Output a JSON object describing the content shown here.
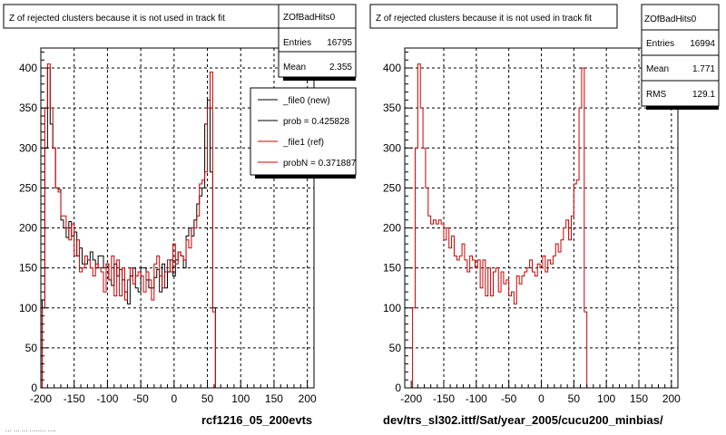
{
  "footer_text": "... ... ... ........ ....",
  "colors": {
    "new": "#000000",
    "ref": "#cc0000"
  },
  "legend": {
    "entries": [
      {
        "label": "_file0 (new)",
        "color": "#000000"
      },
      {
        "label": "prob = 0.425828",
        "color": "#000000"
      },
      {
        "label": "_file1 (ref)",
        "color": "#cc0000"
      },
      {
        "label": "probN = 0.371887",
        "color": "#cc0000"
      }
    ]
  },
  "chart_data": [
    {
      "type": "histogram",
      "title": "Z of rejected clusters  because it is not used in track fit",
      "xlabel": "rcf1216_05_200evts",
      "ylabel": "",
      "xlim": [
        -200,
        210
      ],
      "ylim": [
        0,
        425
      ],
      "xticks": [
        -200,
        -150,
        -100,
        -50,
        0,
        50,
        100,
        150,
        200
      ],
      "yticks": [
        0,
        50,
        100,
        150,
        200,
        250,
        300,
        350,
        400
      ],
      "grid": true,
      "legend": "top-right",
      "bin_edges": {
        "start": -210,
        "width": 4
      },
      "stats": {
        "name": "ZOfBadHits0",
        "rows": [
          {
            "label": "Entries",
            "value": "16795"
          },
          {
            "label": "Mean",
            "value": "2.355"
          }
        ]
      },
      "series": [
        {
          "name": "_file0 (new)",
          "color": "#000000",
          "values": [
            0,
            0,
            0,
            110,
            300,
            400,
            330,
            300,
            250,
            248,
            210,
            200,
            188,
            208,
            190,
            195,
            165,
            175,
            155,
            155,
            160,
            170,
            160,
            150,
            165,
            165,
            150,
            155,
            135,
            128,
            155,
            140,
            148,
            135,
            120,
            105,
            140,
            150,
            125,
            120,
            150,
            150,
            135,
            125,
            125,
            138,
            148,
            120,
            155,
            125,
            145,
            160,
            140,
            160,
            170,
            165,
            150,
            190,
            200,
            190,
            210,
            230,
            240,
            250,
            330,
            360,
            270,
            100,
            0,
            0,
            0,
            0
          ]
        },
        {
          "name": "_file1 (ref)",
          "color": "#cc0000",
          "values": [
            0,
            0,
            0,
            100,
            350,
            405,
            350,
            300,
            250,
            245,
            215,
            215,
            200,
            185,
            205,
            165,
            185,
            145,
            150,
            165,
            160,
            150,
            140,
            155,
            150,
            145,
            120,
            155,
            135,
            165,
            115,
            160,
            115,
            150,
            110,
            135,
            150,
            130,
            140,
            145,
            140,
            120,
            145,
            135,
            110,
            155,
            165,
            140,
            125,
            145,
            160,
            145,
            180,
            155,
            170,
            165,
            160,
            185,
            175,
            200,
            200,
            215,
            255,
            260,
            270,
            350,
            395,
            95,
            0,
            0,
            0,
            0
          ]
        }
      ]
    },
    {
      "type": "histogram",
      "title": "Z of rejected clusters  because it is not used in track fit",
      "xlabel": "dev/trs_sl302.ittf/Sat/year_2005/cucu200_minbias/",
      "ylabel": "",
      "xlim": [
        -210,
        210
      ],
      "ylim": [
        0,
        425
      ],
      "xticks": [
        -200,
        -150,
        -100,
        -50,
        0,
        50,
        100,
        150,
        200
      ],
      "yticks": [
        0,
        50,
        100,
        150,
        200,
        250,
        300,
        350,
        400
      ],
      "grid": true,
      "legend": "none",
      "bin_edges": {
        "start": -210,
        "width": 4
      },
      "stats": {
        "name": "ZOfBadHits0",
        "rows": [
          {
            "label": "Entries",
            "value": "16994"
          },
          {
            "label": "Mean",
            "value": "1.771"
          },
          {
            "label": "RMS",
            "value": "129.1"
          }
        ]
      },
      "series": [
        {
          "name": "_file1 (ref)",
          "color": "#cc0000",
          "values": [
            0,
            0,
            0,
            100,
            300,
            405,
            350,
            300,
            250,
            215,
            205,
            210,
            205,
            210,
            205,
            185,
            200,
            175,
            190,
            165,
            160,
            165,
            180,
            160,
            145,
            165,
            160,
            150,
            160,
            125,
            160,
            115,
            150,
            115,
            145,
            150,
            120,
            145,
            130,
            135,
            115,
            120,
            105,
            140,
            130,
            140,
            145,
            150,
            160,
            145,
            140,
            155,
            150,
            165,
            145,
            160,
            155,
            165,
            180,
            170,
            185,
            200,
            210,
            185,
            215,
            255,
            260,
            350,
            400,
            95,
            0,
            0
          ]
        }
      ]
    }
  ]
}
